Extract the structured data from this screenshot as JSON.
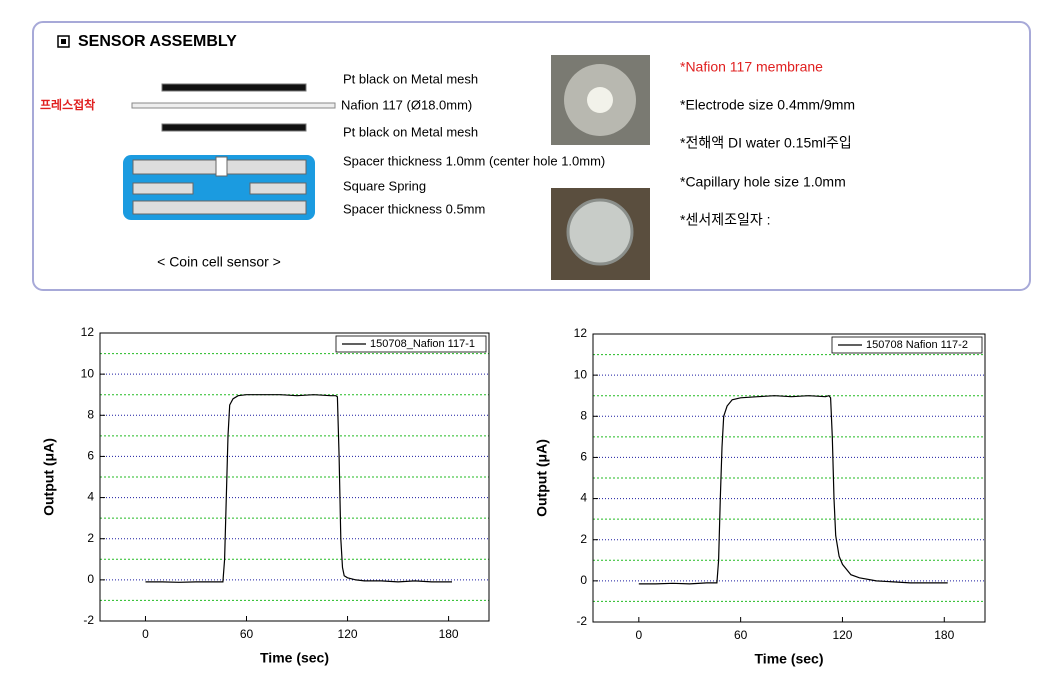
{
  "panel": {
    "title": "SENSOR ASSEMBLY",
    "press_label": "프레스접착",
    "layers": [
      "Pt black on Metal mesh",
      "Nafion 117 (Ø18.0mm)",
      "Pt black on Metal mesh",
      "Spacer thickness 1.0mm (center hole 1.0mm)",
      "Square Spring",
      "Spacer thickness 0.5mm"
    ],
    "caption": "< Coin cell sensor >",
    "notes": [
      "*Nafion 117 membrane",
      "*Electrode size 0.4mm/9mm",
      "*전해액 DI water 0.15ml주입",
      "*Capillary hole size 1.0mm",
      "*센서제조일자 :"
    ]
  },
  "chart_data": [
    {
      "type": "line",
      "xlabel": "Time (sec)",
      "ylabel": "Output (μA)",
      "xlim": [
        -27,
        204
      ],
      "ylim": [
        -2,
        12
      ],
      "xticks": [
        0,
        60,
        120,
        180
      ],
      "yticks": [
        -2,
        0,
        2,
        4,
        6,
        8,
        10,
        12
      ],
      "minor_yticks": [
        -1,
        1,
        3,
        5,
        7,
        9,
        11
      ],
      "grid": true,
      "legend": "upper right",
      "series": [
        {
          "name": "150708_Nafion 117-1",
          "color": "#000000",
          "x": [
            0,
            10,
            20,
            30,
            40,
            46,
            47,
            48,
            49,
            50,
            52,
            55,
            60,
            70,
            80,
            90,
            100,
            110,
            113,
            114,
            115,
            116,
            117,
            118,
            120,
            125,
            130,
            140,
            150,
            160,
            170,
            182
          ],
          "values": [
            -0.1,
            -0.1,
            -0.12,
            -0.1,
            -0.1,
            -0.1,
            1,
            4,
            7,
            8.5,
            8.8,
            8.95,
            9,
            9,
            9,
            8.95,
            9,
            8.95,
            8.95,
            8.9,
            6,
            2,
            0.6,
            0.2,
            0.1,
            0,
            -0.05,
            -0.05,
            -0.1,
            -0.05,
            -0.1,
            -0.1
          ]
        }
      ]
    },
    {
      "type": "line",
      "xlabel": "Time (sec)",
      "ylabel": "Output (μA)",
      "xlim": [
        -27,
        204
      ],
      "ylim": [
        -2,
        12
      ],
      "xticks": [
        0,
        60,
        120,
        180
      ],
      "yticks": [
        -2,
        0,
        2,
        4,
        6,
        8,
        10,
        12
      ],
      "minor_yticks": [
        -1,
        1,
        3,
        5,
        7,
        9,
        11
      ],
      "grid": true,
      "legend": "upper right",
      "series": [
        {
          "name": "150708 Nafion 117-2",
          "color": "#000000",
          "x": [
            0,
            10,
            20,
            30,
            40,
            46,
            47,
            48,
            49,
            50,
            52,
            55,
            60,
            70,
            80,
            90,
            100,
            110,
            112,
            113,
            114,
            115,
            116,
            118,
            120,
            125,
            130,
            140,
            150,
            160,
            170,
            182
          ],
          "values": [
            -0.15,
            -0.15,
            -0.12,
            -0.15,
            -0.1,
            -0.1,
            1,
            4,
            6.5,
            8,
            8.5,
            8.8,
            8.9,
            8.95,
            9,
            8.95,
            9,
            8.95,
            9,
            8.9,
            7,
            4,
            2.2,
            1.2,
            0.8,
            0.3,
            0.15,
            0,
            -0.05,
            -0.1,
            -0.1,
            -0.1
          ]
        }
      ]
    }
  ]
}
